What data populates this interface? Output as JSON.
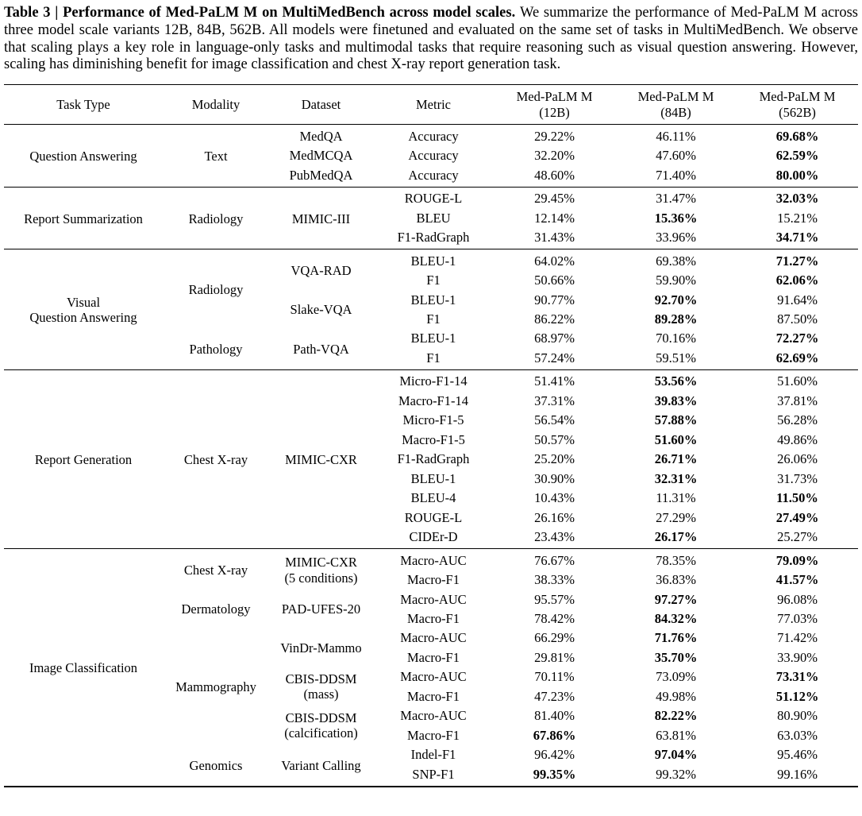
{
  "caption": {
    "bold": "Table 3 | Performance of Med-PaLM M on MultiMedBench across model scales. ",
    "body": "We summarize the performance of Med-PaLM M across three model scale variants 12B, 84B, 562B. All models were finetuned and evaluated on the same set of tasks in MultiMedBench. We observe that scaling plays a key role in language-only tasks and multimodal tasks that require reasoning such as visual question answering. However, scaling has diminishing benefit for image classification and chest X-ray report generation task."
  },
  "table": {
    "columns": [
      "Task Type",
      "Modality",
      "Dataset",
      "Metric"
    ],
    "model_columns": [
      {
        "line1": "Med-PaLM M",
        "line2": "(12B)"
      },
      {
        "line1": "Med-PaLM M",
        "line2": "(84B)"
      },
      {
        "line1": "Med-PaLM M",
        "line2": "(562B)"
      }
    ],
    "groups": [
      {
        "task_type": "Question Answering",
        "modalities": [
          {
            "name": "Text",
            "datasets": [
              {
                "name": "MedQA",
                "rows": [
                  {
                    "metric": "Accuracy",
                    "values": [
                      "29.22%",
                      "46.11%",
                      "69.68%"
                    ],
                    "bold": 2
                  }
                ]
              },
              {
                "name": "MedMCQA",
                "rows": [
                  {
                    "metric": "Accuracy",
                    "values": [
                      "32.20%",
                      "47.60%",
                      "62.59%"
                    ],
                    "bold": 2
                  }
                ]
              },
              {
                "name": "PubMedQA",
                "rows": [
                  {
                    "metric": "Accuracy",
                    "values": [
                      "48.60%",
                      "71.40%",
                      "80.00%"
                    ],
                    "bold": 2
                  }
                ]
              }
            ]
          }
        ]
      },
      {
        "task_type": "Report Summarization",
        "modalities": [
          {
            "name": "Radiology",
            "datasets": [
              {
                "name": "MIMIC-III",
                "rows": [
                  {
                    "metric": "ROUGE-L",
                    "values": [
                      "29.45%",
                      "31.47%",
                      "32.03%"
                    ],
                    "bold": 2
                  },
                  {
                    "metric": "BLEU",
                    "values": [
                      "12.14%",
                      "15.36%",
                      "15.21%"
                    ],
                    "bold": 1
                  },
                  {
                    "metric": "F1-RadGraph",
                    "values": [
                      "31.43%",
                      "33.96%",
                      "34.71%"
                    ],
                    "bold": 2
                  }
                ]
              }
            ]
          }
        ]
      },
      {
        "task_type": "Visual\nQuestion Answering",
        "modalities": [
          {
            "name": "Radiology",
            "datasets": [
              {
                "name": "VQA-RAD",
                "rows": [
                  {
                    "metric": "BLEU-1",
                    "values": [
                      "64.02%",
                      "69.38%",
                      "71.27%"
                    ],
                    "bold": 2
                  },
                  {
                    "metric": "F1",
                    "values": [
                      "50.66%",
                      "59.90%",
                      "62.06%"
                    ],
                    "bold": 2
                  }
                ]
              },
              {
                "name": "Slake-VQA",
                "rows": [
                  {
                    "metric": "BLEU-1",
                    "values": [
                      "90.77%",
                      "92.70%",
                      "91.64%"
                    ],
                    "bold": 1
                  },
                  {
                    "metric": "F1",
                    "values": [
                      "86.22%",
                      "89.28%",
                      "87.50%"
                    ],
                    "bold": 1
                  }
                ]
              }
            ]
          },
          {
            "name": "Pathology",
            "datasets": [
              {
                "name": "Path-VQA",
                "rows": [
                  {
                    "metric": "BLEU-1",
                    "values": [
                      "68.97%",
                      "70.16%",
                      "72.27%"
                    ],
                    "bold": 2
                  },
                  {
                    "metric": "F1",
                    "values": [
                      "57.24%",
                      "59.51%",
                      "62.69%"
                    ],
                    "bold": 2
                  }
                ]
              }
            ]
          }
        ]
      },
      {
        "task_type": "Report Generation",
        "modalities": [
          {
            "name": "Chest X-ray",
            "datasets": [
              {
                "name": "MIMIC-CXR",
                "rows": [
                  {
                    "metric": "Micro-F1-14",
                    "values": [
                      "51.41%",
                      "53.56%",
                      "51.60%"
                    ],
                    "bold": 1
                  },
                  {
                    "metric": "Macro-F1-14",
                    "values": [
                      "37.31%",
                      "39.83%",
                      "37.81%"
                    ],
                    "bold": 1
                  },
                  {
                    "metric": "Micro-F1-5",
                    "values": [
                      "56.54%",
                      "57.88%",
                      "56.28%"
                    ],
                    "bold": 1
                  },
                  {
                    "metric": "Macro-F1-5",
                    "values": [
                      "50.57%",
                      "51.60%",
                      "49.86%"
                    ],
                    "bold": 1
                  },
                  {
                    "metric": "F1-RadGraph",
                    "values": [
                      "25.20%",
                      "26.71%",
                      "26.06%"
                    ],
                    "bold": 1
                  },
                  {
                    "metric": "BLEU-1",
                    "values": [
                      "30.90%",
                      "32.31%",
                      "31.73%"
                    ],
                    "bold": 1
                  },
                  {
                    "metric": "BLEU-4",
                    "values": [
                      "10.43%",
                      "11.31%",
                      "11.50%"
                    ],
                    "bold": 2
                  },
                  {
                    "metric": "ROUGE-L",
                    "values": [
                      "26.16%",
                      "27.29%",
                      "27.49%"
                    ],
                    "bold": 2
                  },
                  {
                    "metric": "CIDEr-D",
                    "values": [
                      "23.43%",
                      "26.17%",
                      "25.27%"
                    ],
                    "bold": 1
                  }
                ]
              }
            ]
          }
        ]
      },
      {
        "task_type": "Image Classification",
        "modalities": [
          {
            "name": "Chest X-ray",
            "datasets": [
              {
                "name": "MIMIC-CXR",
                "note": "(5 conditions)",
                "rows": [
                  {
                    "metric": "Macro-AUC",
                    "values": [
                      "76.67%",
                      "78.35%",
                      "79.09%"
                    ],
                    "bold": 2
                  },
                  {
                    "metric": "Macro-F1",
                    "values": [
                      "38.33%",
                      "36.83%",
                      "41.57%"
                    ],
                    "bold": 2
                  }
                ]
              }
            ]
          },
          {
            "name": "Dermatology",
            "datasets": [
              {
                "name": "PAD-UFES-20",
                "rows": [
                  {
                    "metric": "Macro-AUC",
                    "values": [
                      "95.57%",
                      "97.27%",
                      "96.08%"
                    ],
                    "bold": 1
                  },
                  {
                    "metric": "Macro-F1",
                    "values": [
                      "78.42%",
                      "84.32%",
                      "77.03%"
                    ],
                    "bold": 1
                  }
                ]
              }
            ]
          },
          {
            "name": "Mammography",
            "datasets": [
              {
                "name": "VinDr-Mammo",
                "rows": [
                  {
                    "metric": "Macro-AUC",
                    "values": [
                      "66.29%",
                      "71.76%",
                      "71.42%"
                    ],
                    "bold": 1
                  },
                  {
                    "metric": "Macro-F1",
                    "values": [
                      "29.81%",
                      "35.70%",
                      "33.90%"
                    ],
                    "bold": 1
                  }
                ]
              },
              {
                "name": "CBIS-DDSM",
                "note": "(mass)",
                "rows": [
                  {
                    "metric": "Macro-AUC",
                    "values": [
                      "70.11%",
                      "73.09%",
                      "73.31%"
                    ],
                    "bold": 2
                  },
                  {
                    "metric": "Macro-F1",
                    "values": [
                      "47.23%",
                      "49.98%",
                      "51.12%"
                    ],
                    "bold": 2
                  }
                ]
              },
              {
                "name": "CBIS-DDSM",
                "note": "(calcification)",
                "rows": [
                  {
                    "metric": "Macro-AUC",
                    "values": [
                      "81.40%",
                      "82.22%",
                      "80.90%"
                    ],
                    "bold": 1
                  },
                  {
                    "metric": "Macro-F1",
                    "values": [
                      "67.86%",
                      "63.81%",
                      "63.03%"
                    ],
                    "bold": 0
                  }
                ]
              }
            ]
          },
          {
            "name": "Genomics",
            "datasets": [
              {
                "name": "Variant Calling",
                "rows": [
                  {
                    "metric": "Indel-F1",
                    "values": [
                      "96.42%",
                      "97.04%",
                      "95.46%"
                    ],
                    "bold": 1
                  },
                  {
                    "metric": "SNP-F1",
                    "values": [
                      "99.35%",
                      "99.32%",
                      "99.16%"
                    ],
                    "bold": 0
                  }
                ]
              }
            ]
          }
        ]
      }
    ]
  }
}
